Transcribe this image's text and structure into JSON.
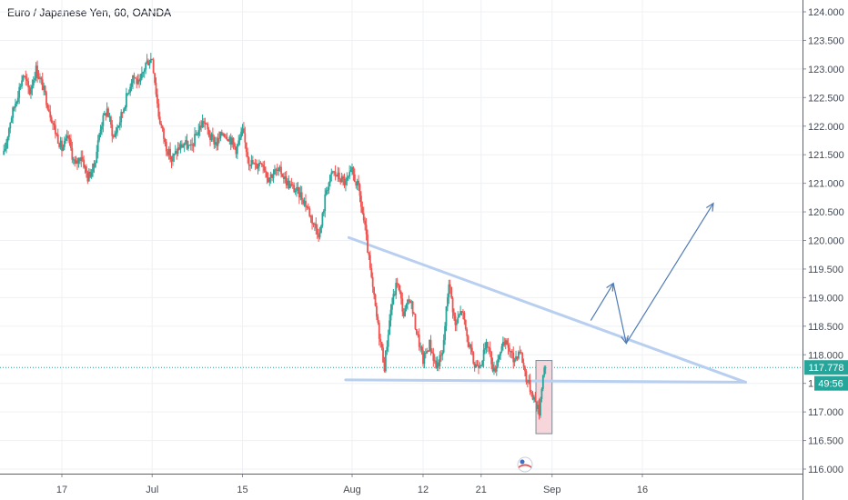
{
  "chart_data": {
    "type": "candlestick",
    "title": "Euro / Japanese Yen, 60, OANDA",
    "symbol": "EURJPY",
    "interval": "60",
    "source": "OANDA",
    "y_ticks": [
      124.0,
      123.5,
      123.0,
      122.5,
      122.0,
      121.5,
      121.0,
      120.5,
      120.0,
      119.5,
      119.0,
      118.5,
      118.0,
      117.5,
      117.0,
      116.5,
      116.0
    ],
    "y_tick_labels": [
      "124.000",
      "123.500",
      "123.000",
      "122.500",
      "122.000",
      "121.500",
      "121.000",
      "120.500",
      "120.000",
      "119.500",
      "119.000",
      "118.500",
      "118.000",
      "117.500",
      "117.000",
      "116.500",
      "116.000"
    ],
    "hidden_tick_label": "1",
    "ylim": [
      115.88,
      124.18
    ],
    "x_tick_labels": [
      "17",
      "Jul",
      "15",
      "Aug",
      "12",
      "21",
      "Sep",
      "16"
    ],
    "x_tick_days": [
      17,
      31,
      45,
      62,
      73,
      82,
      93,
      107
    ],
    "xlim_days": [
      8,
      126
    ],
    "last_price_label": "117.778",
    "last_price": 117.778,
    "countdown_label": "49:56",
    "countdown_price": 117.5,
    "price_path": [
      [
        8,
        121.5
      ],
      [
        9,
        122.1
      ],
      [
        10,
        122.5
      ],
      [
        11,
        122.9
      ],
      [
        12,
        122.6
      ],
      [
        13,
        123.0
      ],
      [
        14,
        122.7
      ],
      [
        15,
        122.3
      ],
      [
        16,
        121.9
      ],
      [
        17,
        121.6
      ],
      [
        18,
        121.8
      ],
      [
        19,
        121.3
      ],
      [
        20,
        121.5
      ],
      [
        21,
        121.1
      ],
      [
        22,
        121.3
      ],
      [
        23,
        122.0
      ],
      [
        24,
        122.3
      ],
      [
        25,
        121.8
      ],
      [
        26,
        122.1
      ],
      [
        27,
        122.5
      ],
      [
        28,
        122.9
      ],
      [
        29,
        122.7
      ],
      [
        30,
        123.1
      ],
      [
        31,
        123.2
      ],
      [
        32,
        122.2
      ],
      [
        33,
        121.7
      ],
      [
        34,
        121.4
      ],
      [
        35,
        121.6
      ],
      [
        36,
        121.7
      ],
      [
        37,
        121.6
      ],
      [
        38,
        121.9
      ],
      [
        39,
        122.1
      ],
      [
        40,
        121.8
      ],
      [
        41,
        121.7
      ],
      [
        42,
        121.9
      ],
      [
        43,
        121.8
      ],
      [
        44,
        121.6
      ],
      [
        45,
        121.9
      ],
      [
        46,
        121.4
      ],
      [
        47,
        121.3
      ],
      [
        48,
        121.4
      ],
      [
        49,
        121.1
      ],
      [
        50,
        121.2
      ],
      [
        51,
        121.2
      ],
      [
        52,
        121.0
      ],
      [
        53,
        120.9
      ],
      [
        54,
        120.8
      ],
      [
        55,
        120.6
      ],
      [
        56,
        120.3
      ],
      [
        57,
        120.1
      ],
      [
        58,
        120.9
      ],
      [
        59,
        121.2
      ],
      [
        60,
        121.1
      ],
      [
        61,
        121.0
      ],
      [
        62,
        121.2
      ],
      [
        63,
        120.9
      ],
      [
        64,
        120.2
      ],
      [
        65,
        119.3
      ],
      [
        66,
        118.5
      ],
      [
        67,
        117.8
      ],
      [
        68,
        118.8
      ],
      [
        69,
        119.3
      ],
      [
        70,
        118.7
      ],
      [
        71,
        119.0
      ],
      [
        72,
        118.4
      ],
      [
        73,
        117.9
      ],
      [
        74,
        118.2
      ],
      [
        75,
        117.8
      ],
      [
        76,
        118.0
      ],
      [
        77,
        119.3
      ],
      [
        78,
        118.5
      ],
      [
        79,
        118.8
      ],
      [
        80,
        118.2
      ],
      [
        81,
        117.8
      ],
      [
        82,
        117.9
      ],
      [
        83,
        118.2
      ],
      [
        84,
        117.7
      ],
      [
        85,
        118.1
      ],
      [
        86,
        118.2
      ],
      [
        87,
        117.9
      ],
      [
        88,
        118.1
      ],
      [
        89,
        117.6
      ],
      [
        90,
        117.3
      ],
      [
        91,
        117.0
      ],
      [
        91.5,
        117.6
      ],
      [
        92,
        117.78
      ]
    ],
    "annotations": {
      "descending_trendline": {
        "from": [
          61.5,
          120.05
        ],
        "to": [
          123,
          117.52
        ]
      },
      "support_line": {
        "from": [
          61,
          117.56
        ],
        "to": [
          123,
          117.52
        ]
      },
      "highlight_box": {
        "from_day": 90.5,
        "to_day": 93,
        "top": 117.9,
        "bottom": 116.62
      },
      "projection_arrows": [
        {
          "from": [
            99,
            118.6
          ],
          "to": [
            102.5,
            119.25
          ]
        },
        {
          "from": [
            102.5,
            119.25
          ],
          "to": [
            104.5,
            118.2
          ]
        },
        {
          "from": [
            104.5,
            118.2
          ],
          "to": [
            118,
            120.65
          ]
        }
      ]
    },
    "grid": true,
    "horizontal_price_line": 117.778
  },
  "colors": {
    "up": "#26a69a",
    "down": "#ef5350",
    "grid": "#eef0f3",
    "axis_text": "#444a55",
    "trendline": "#b8cff0",
    "arrow": "#4f7bb5",
    "price_badge": "#26a69a",
    "box_fill": "#f6d6da",
    "box_border": "#7d8c96"
  },
  "icons": {
    "logo": "tradingview-badge-icon"
  }
}
